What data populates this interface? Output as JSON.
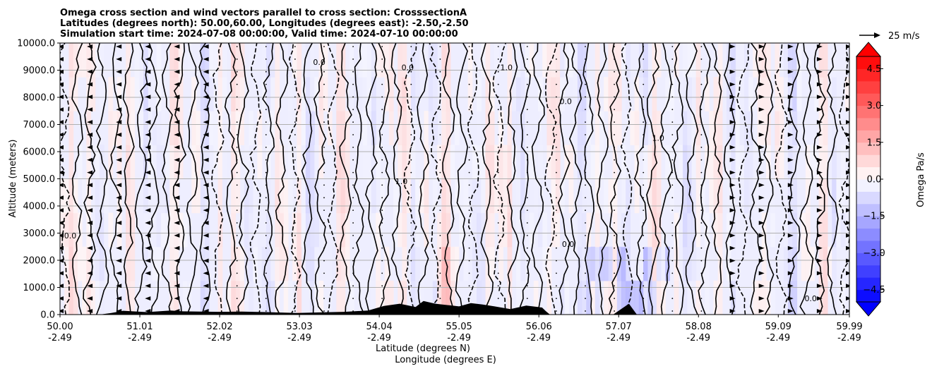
{
  "chart_data": {
    "type": "cross-section-contour",
    "title_lines": [
      "Omega cross section and wind vectors parallel to cross section: CrosssectionA",
      "Latitudes (degrees north): 50.00,60.00, Longitudes (degrees east): -2.50,-2.50",
      "Simulation start time: 2024-07-08 00:00:00, Valid time: 2024-07-10 00:00:00"
    ],
    "ylabel": "Altitude (meters)",
    "xlabel_lat": "Latitude (degrees N)",
    "xlabel_lon": "Longitude (degrees E)",
    "ylim": [
      0,
      10000
    ],
    "xlim": [
      50.0,
      59.99
    ],
    "y_ticks": [
      {
        "value": 0,
        "label": "0.0"
      },
      {
        "value": 1000,
        "label": "1000.0"
      },
      {
        "value": 2000,
        "label": "2000.0"
      },
      {
        "value": 3000,
        "label": "3000.0"
      },
      {
        "value": 4000,
        "label": "4000.0"
      },
      {
        "value": 5000,
        "label": "5000.0"
      },
      {
        "value": 6000,
        "label": "6000.0"
      },
      {
        "value": 7000,
        "label": "7000.0"
      },
      {
        "value": 8000,
        "label": "8000.0"
      },
      {
        "value": 9000,
        "label": "9000.0"
      },
      {
        "value": 10000,
        "label": "10000.0"
      }
    ],
    "x_ticks": [
      {
        "value": 50.0,
        "lat": "50.00",
        "lon": "-2.49"
      },
      {
        "value": 51.01,
        "lat": "51.01",
        "lon": "-2.49"
      },
      {
        "value": 52.02,
        "lat": "52.02",
        "lon": "-2.49"
      },
      {
        "value": 53.03,
        "lat": "53.03",
        "lon": "-2.49"
      },
      {
        "value": 54.04,
        "lat": "54.04",
        "lon": "-2.49"
      },
      {
        "value": 55.05,
        "lat": "55.05",
        "lon": "-2.49"
      },
      {
        "value": 56.06,
        "lat": "56.06",
        "lon": "-2.49"
      },
      {
        "value": 57.07,
        "lat": "57.07",
        "lon": "-2.49"
      },
      {
        "value": 58.08,
        "lat": "58.08",
        "lon": "-2.49"
      },
      {
        "value": 59.09,
        "lat": "59.09",
        "lon": "-2.49"
      },
      {
        "value": 59.99,
        "lat": "59.99",
        "lon": "-2.49"
      }
    ],
    "grid": "horizontal",
    "colorbar": {
      "label": "Omega Pa/s",
      "min": -5,
      "max": 5,
      "extend": "both",
      "ticks": [
        {
          "value": 4.5,
          "label": "4.5"
        },
        {
          "value": 3.0,
          "label": "3.0"
        },
        {
          "value": 1.5,
          "label": "1.5"
        },
        {
          "value": 0.0,
          "label": "0.0"
        },
        {
          "value": -1.5,
          "label": "−1.5"
        },
        {
          "value": -3.0,
          "label": "−3.0"
        },
        {
          "value": -4.5,
          "label": "−4.5"
        }
      ],
      "colormap": "bwr",
      "low_color": "#0000ff",
      "high_color": "#ff0000"
    },
    "quiver_key": {
      "label": "25 m/s",
      "speed": 25
    },
    "contour_labels": [
      {
        "lat": 56.43,
        "alt": 2500,
        "text": "0.0"
      },
      {
        "lat": 56.4,
        "alt": 7750,
        "text": "0.0"
      },
      {
        "lat": 57.57,
        "alt": 6400,
        "text": "1.0"
      },
      {
        "lat": 59.5,
        "alt": 500,
        "text": "0.0"
      },
      {
        "lat": 54.4,
        "alt": 9000,
        "text": "0.0"
      },
      {
        "lat": 53.28,
        "alt": 9200,
        "text": "0.0"
      },
      {
        "lat": 55.65,
        "alt": 9000,
        "text": "1.0"
      },
      {
        "lat": 54.32,
        "alt": 4800,
        "text": "1.0"
      },
      {
        "lat": 50.13,
        "alt": 2800,
        "text": "0.0"
      }
    ],
    "terrain": {
      "lat": [
        50.0,
        50.5,
        50.65,
        50.8,
        51.1,
        51.4,
        51.55,
        52.0,
        52.3,
        52.6,
        53.0,
        53.3,
        53.6,
        53.9,
        54.1,
        54.3,
        54.5,
        54.6,
        54.75,
        54.9,
        55.05,
        55.2,
        55.35,
        55.5,
        55.7,
        55.9,
        56.1,
        56.15,
        56.2,
        57.0,
        57.2,
        57.3,
        59.99
      ],
      "alt": [
        0,
        0,
        60,
        140,
        90,
        150,
        120,
        100,
        110,
        90,
        60,
        80,
        100,
        150,
        320,
        400,
        280,
        500,
        400,
        350,
        300,
        420,
        370,
        300,
        200,
        330,
        260,
        120,
        0,
        0,
        400,
        0,
        0
      ]
    },
    "wind_note": "wind vectors parallel to cross section (u-component along latitude axis)"
  }
}
